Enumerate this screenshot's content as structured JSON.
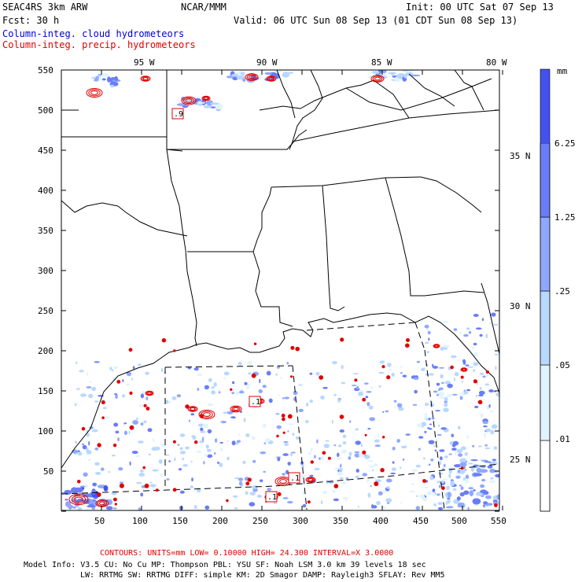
{
  "header": {
    "model": "SEAC4RS  3km ARW",
    "org": "NCAR/MMM",
    "init": "Init: 00 UTC Sat 07 Sep 13",
    "fcst": "Fcst:   30 h",
    "valid": "Valid: 06 UTC Sun 08 Sep 13 (01 CDT Sun 08 Sep 13)",
    "legend_cloud": "Column-integ. cloud hydrometeors",
    "legend_precip": "Column-integ. precip. hydrometeors"
  },
  "colors": {
    "cloud_text": "#0000cc",
    "precip": "#e00000",
    "bin1": "#ffffff",
    "bin2": "#e0f4ff",
    "bin3": "#b8d8ff",
    "bin4": "#8fa8ff",
    "bin5": "#6a7df7",
    "bin6": "#4352ee",
    "bin7": "#1c1cd8"
  },
  "lon_labels": [
    "95 W",
    "90 W",
    "85 W",
    "80 W"
  ],
  "lat_labels": [
    "35 N",
    "30 N",
    "25 N"
  ],
  "y_ticks": [
    "550",
    "500",
    "450",
    "400",
    "350",
    "300",
    "250",
    "200",
    "150",
    "100",
    "50"
  ],
  "x_ticks": [
    "50",
    "100",
    "150",
    "200",
    "250",
    "300",
    "350",
    "400",
    "450",
    "500",
    "550"
  ],
  "colorbar": {
    "unit": "mm",
    "labels": [
      "6.25",
      "1.25",
      ".25",
      ".05",
      ".01"
    ]
  },
  "contour_labels": [
    ".9",
    ".1",
    ".1",
    ".1"
  ],
  "footer": {
    "contours": "CONTOURS:  UNITS=mm  LOW= 0.10000     HIGH=  24.300     INTERVAL=X  3.0000",
    "info1": "Model Info: V3.5     CU: No Cu     MP: Thompson     PBL: YSU      SF: Noah LSM     3.0 km   39 levels   18 sec",
    "info2": "LW: RRTMG    SW: RRTMG   DIFF: simple KM: 2D Smagor DAMP: Rayleigh3   SFLAY: Rev MM5"
  }
}
